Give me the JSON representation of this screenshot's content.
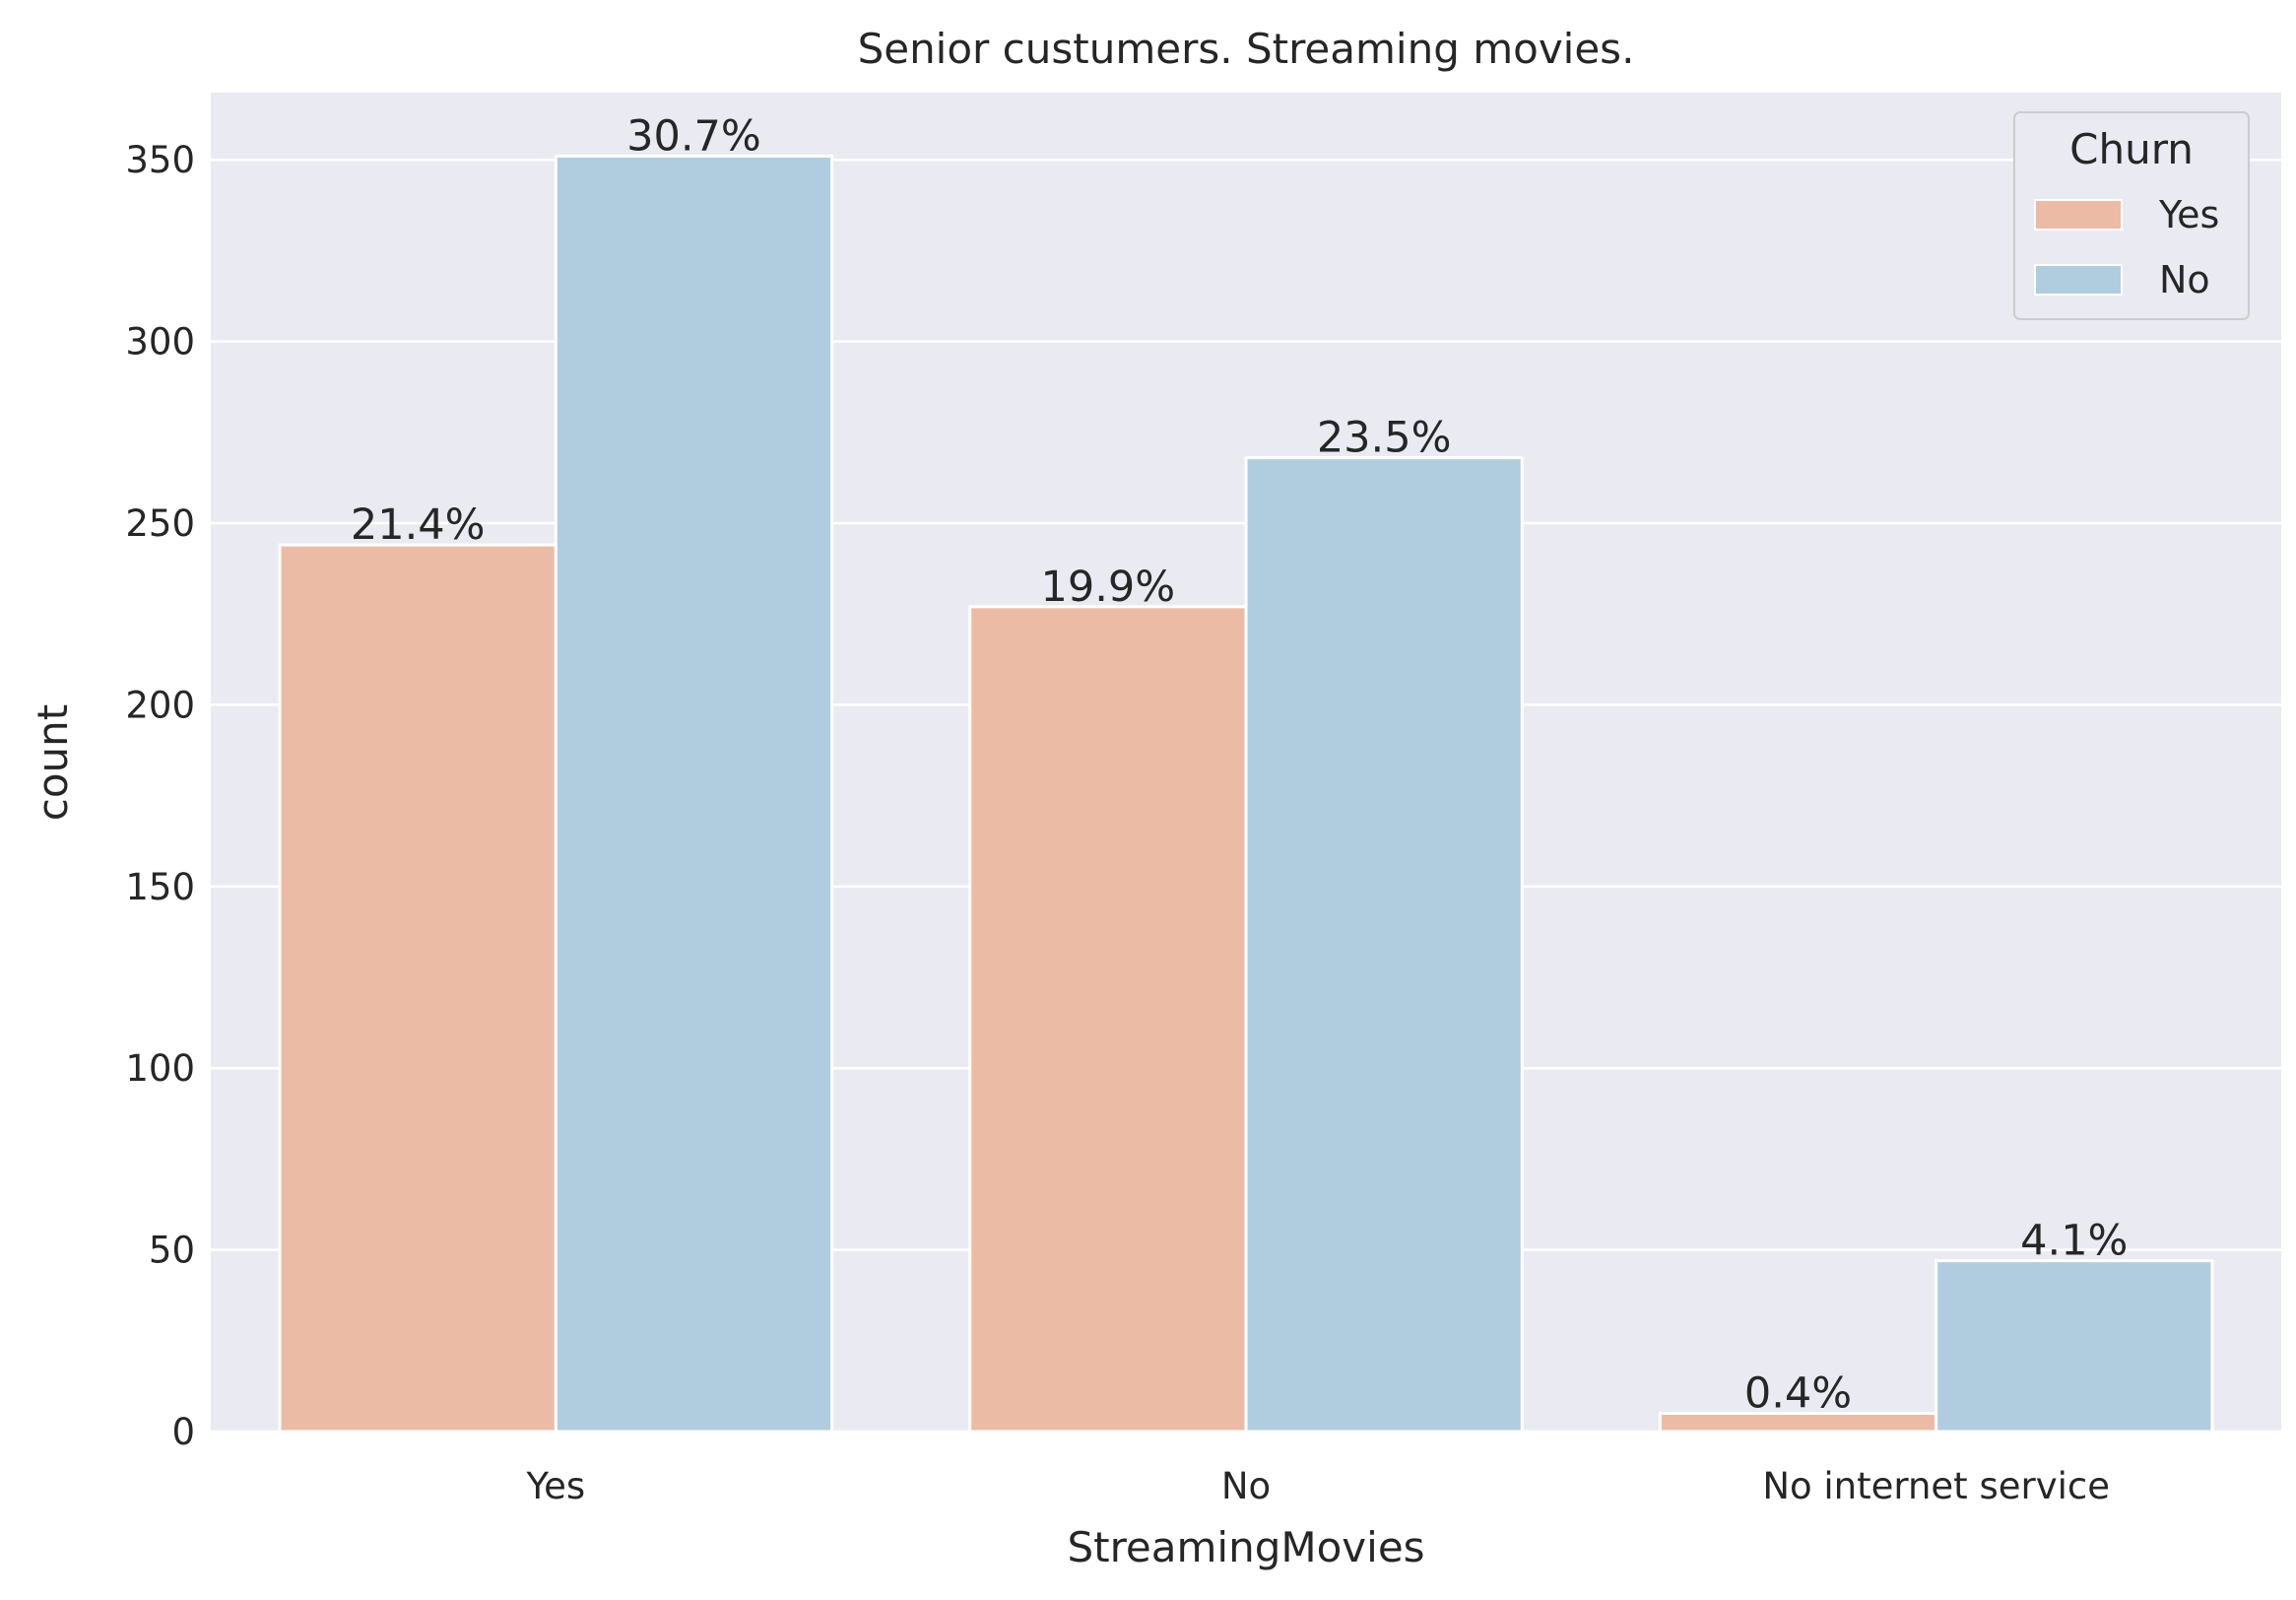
{
  "chart_data": {
    "type": "bar",
    "title": "Senior custumers. Streaming movies.",
    "xlabel": "StreamingMovies",
    "ylabel": "count",
    "categories": [
      "Yes",
      "No",
      "No internet service"
    ],
    "series": [
      {
        "name": "Yes",
        "color": "#ebbba5",
        "values": [
          244,
          227,
          5
        ],
        "labels": [
          "21.4%",
          "19.9%",
          "0.4%"
        ]
      },
      {
        "name": "No",
        "color": "#b0cddf",
        "values": [
          351,
          268,
          47
        ],
        "labels": [
          "30.7%",
          "23.5%",
          "4.1%"
        ]
      }
    ],
    "yticks": [
      0,
      50,
      100,
      150,
      200,
      250,
      300,
      350
    ],
    "ylim": [
      0,
      368.5
    ],
    "grid": true,
    "legend": {
      "title": "Churn",
      "position": "top-right"
    },
    "background_color": "#eaeaf2"
  }
}
